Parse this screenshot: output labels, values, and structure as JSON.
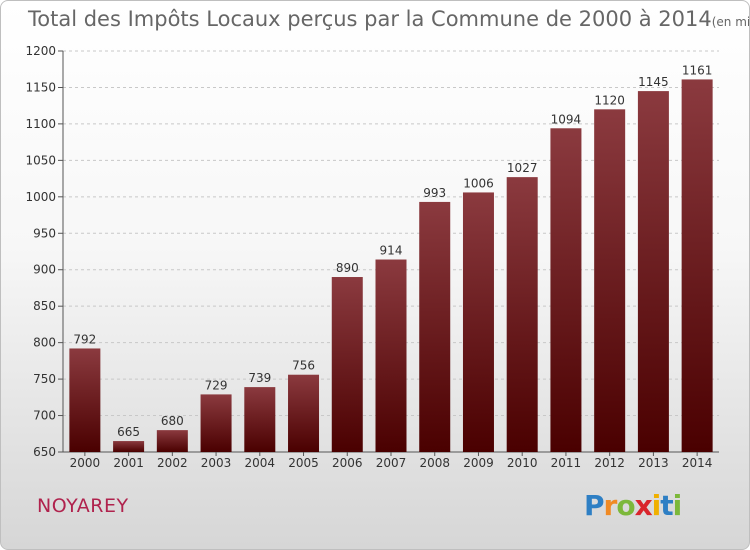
{
  "title": "Total des Impôts Locaux perçus par la Commune de 2000 à 2014",
  "title_unit": "(en milliers d'€)",
  "commune": "NOYAREY",
  "logo": {
    "letters": [
      "P",
      "r",
      "o",
      "x",
      "i",
      "t",
      "i"
    ],
    "colors": [
      "#2e7fc4",
      "#f08a24",
      "#7cb83a",
      "#d9252c",
      "#f0b000",
      "#2e7fc4",
      "#7cb83a"
    ]
  },
  "colors": {
    "bar_top": "#8b3a3f",
    "bar_bottom": "#4a0000",
    "grid": "#c8c8c8",
    "axis_text": "#333333"
  },
  "chart_data": {
    "type": "bar",
    "title": "Total des Impôts Locaux perçus par la Commune de 2000 à 2014",
    "xlabel": "",
    "ylabel": "",
    "categories": [
      "2000",
      "2001",
      "2002",
      "2003",
      "2004",
      "2005",
      "2006",
      "2007",
      "2008",
      "2009",
      "2010",
      "2011",
      "2012",
      "2013",
      "2014"
    ],
    "values": [
      792,
      665,
      680,
      729,
      739,
      756,
      890,
      914,
      993,
      1006,
      1027,
      1094,
      1120,
      1145,
      1161
    ],
    "ylim": [
      650,
      1200
    ],
    "yticks": [
      650,
      700,
      750,
      800,
      850,
      900,
      950,
      1000,
      1050,
      1100,
      1150,
      1200
    ],
    "grid": true,
    "legend": "none"
  }
}
